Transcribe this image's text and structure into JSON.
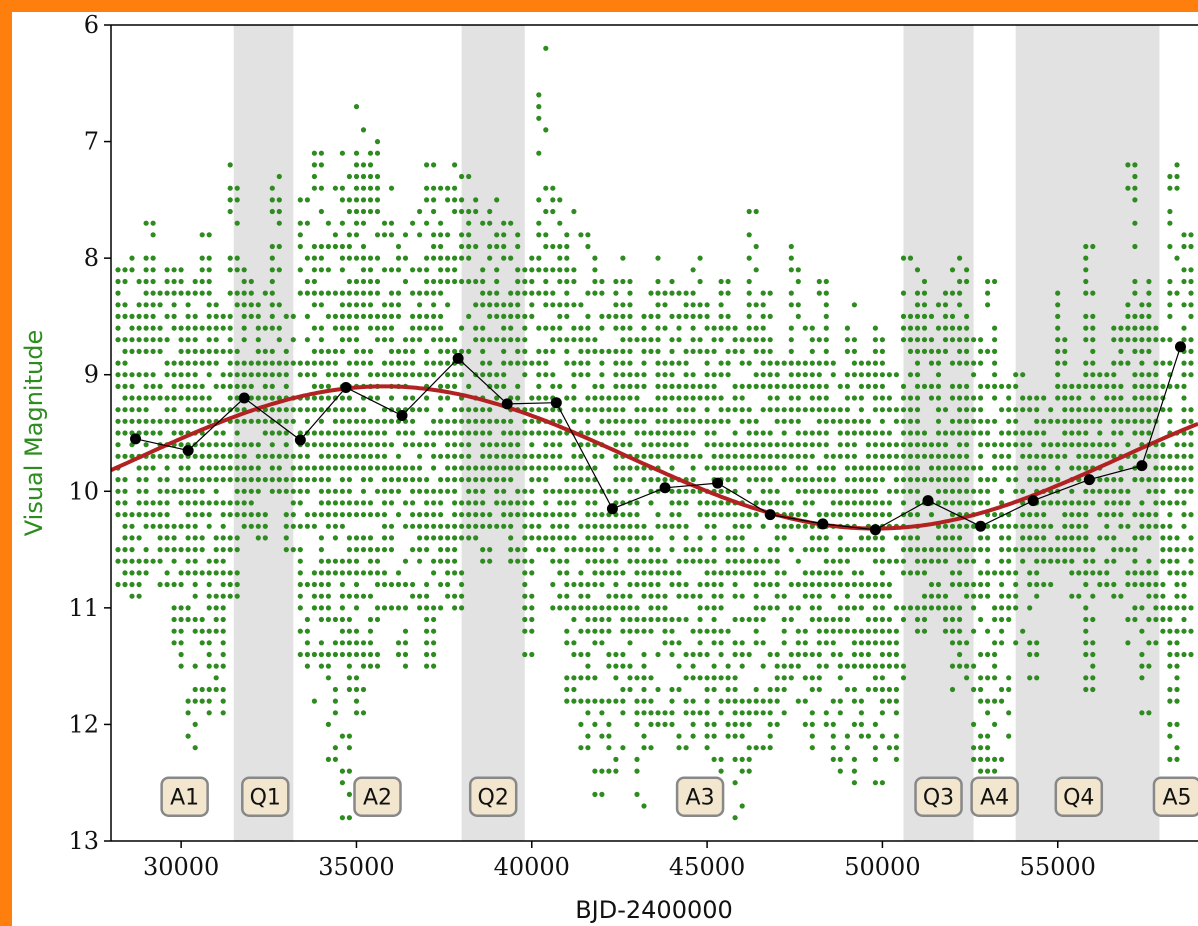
{
  "colors": {
    "border": "#ff7f0e",
    "scatter": "#2e8b1f",
    "fit": "#b22222",
    "means": "#000000",
    "shade": "#e2e2e2",
    "label_fill": "#f2e6cf",
    "label_stroke": "#888888",
    "ylabel": "#2e8b1f"
  },
  "chart_data": {
    "type": "scatter",
    "xlabel": "BJD-2400000",
    "ylabel": "Visual Magnitude",
    "xlim": [
      28000,
      59000
    ],
    "ylim": [
      13,
      6
    ],
    "y_inverted": true,
    "xticks": [
      30000,
      35000,
      40000,
      45000,
      50000,
      55000
    ],
    "yticks": [
      6,
      7,
      8,
      9,
      10,
      11,
      12,
      13
    ],
    "grid": false,
    "shaded_regions": [
      {
        "name": "Q1",
        "x0": 31500,
        "x1": 33200
      },
      {
        "name": "Q2",
        "x0": 38000,
        "x1": 39800
      },
      {
        "name": "Q3",
        "x0": 50600,
        "x1": 52600
      },
      {
        "name": "Q4",
        "x0": 53800,
        "x1": 57900
      }
    ],
    "region_labels": [
      {
        "text": "A1",
        "x": 30100
      },
      {
        "text": "Q1",
        "x": 32400
      },
      {
        "text": "A2",
        "x": 35600
      },
      {
        "text": "Q2",
        "x": 38900
      },
      {
        "text": "A3",
        "x": 44800
      },
      {
        "text": "Q3",
        "x": 51600
      },
      {
        "text": "A4",
        "x": 53200
      },
      {
        "text": "Q4",
        "x": 55600
      },
      {
        "text": "A5",
        "x": 58400
      }
    ],
    "region_label_y": 12.62,
    "series": [
      {
        "role": "mean magnitudes",
        "x": [
          28700,
          30200,
          31800,
          33400,
          34700,
          36300,
          37900,
          39300,
          40700,
          42300,
          43800,
          45300,
          46800,
          48300,
          49800,
          51300,
          52800,
          54300,
          55900,
          57400,
          58500
        ],
        "y": [
          9.55,
          9.65,
          9.2,
          9.56,
          9.11,
          9.35,
          8.86,
          9.25,
          9.24,
          10.15,
          9.97,
          9.93,
          10.2,
          10.28,
          10.33,
          10.08,
          10.3,
          10.08,
          9.9,
          9.78,
          8.76
        ]
      },
      {
        "role": "sinusoidal fit",
        "mean": 9.71,
        "amplitude": 0.61,
        "period": 28000,
        "phase_x": 35800
      },
      {
        "role": "visual estimates",
        "bins": [
          {
            "x": 28300,
            "lo": 8.1,
            "hi": 10.8
          },
          {
            "x": 28700,
            "lo": 8.0,
            "hi": 10.9
          },
          {
            "x": 29100,
            "lo": 7.7,
            "hi": 10.7
          },
          {
            "x": 29500,
            "lo": 8.1,
            "hi": 10.8
          },
          {
            "x": 29900,
            "lo": 8.0,
            "hi": 11.6
          },
          {
            "x": 30300,
            "lo": 8.2,
            "hi": 12.2
          },
          {
            "x": 30700,
            "lo": 7.8,
            "hi": 11.9
          },
          {
            "x": 31100,
            "lo": 8.4,
            "hi": 11.9
          },
          {
            "x": 31500,
            "lo": 7.2,
            "hi": 10.9
          },
          {
            "x": 31900,
            "lo": 8.1,
            "hi": 10.3
          },
          {
            "x": 32300,
            "lo": 8.3,
            "hi": 10.4
          },
          {
            "x": 32700,
            "lo": 7.3,
            "hi": 10.0
          },
          {
            "x": 33100,
            "lo": 8.5,
            "hi": 10.5
          },
          {
            "x": 33500,
            "lo": 7.5,
            "hi": 11.5
          },
          {
            "x": 33900,
            "lo": 6.9,
            "hi": 11.8
          },
          {
            "x": 34300,
            "lo": 7.4,
            "hi": 12.4
          },
          {
            "x": 34700,
            "lo": 7.1,
            "hi": 12.8
          },
          {
            "x": 35100,
            "lo": 6.6,
            "hi": 11.9
          },
          {
            "x": 35500,
            "lo": 7.0,
            "hi": 11.6
          },
          {
            "x": 35900,
            "lo": 7.4,
            "hi": 11.0
          },
          {
            "x": 36300,
            "lo": 7.8,
            "hi": 11.5
          },
          {
            "x": 36700,
            "lo": 7.6,
            "hi": 11.0
          },
          {
            "x": 37100,
            "lo": 7.2,
            "hi": 11.5
          },
          {
            "x": 37500,
            "lo": 7.4,
            "hi": 11.0
          },
          {
            "x": 37900,
            "lo": 7.1,
            "hi": 11.0
          },
          {
            "x": 38300,
            "lo": 7.3,
            "hi": 10.4
          },
          {
            "x": 38700,
            "lo": 7.6,
            "hi": 10.6
          },
          {
            "x": 39100,
            "lo": 7.5,
            "hi": 10.3
          },
          {
            "x": 39500,
            "lo": 7.7,
            "hi": 10.6
          },
          {
            "x": 39900,
            "lo": 8.0,
            "hi": 11.4
          },
          {
            "x": 40300,
            "lo": 6.1,
            "hi": 10.5
          },
          {
            "x": 40700,
            "lo": 7.4,
            "hi": 11.0
          },
          {
            "x": 41100,
            "lo": 7.6,
            "hi": 11.8
          },
          {
            "x": 41500,
            "lo": 7.8,
            "hi": 12.2
          },
          {
            "x": 41900,
            "lo": 8.0,
            "hi": 12.6
          },
          {
            "x": 42300,
            "lo": 8.2,
            "hi": 12.4
          },
          {
            "x": 42700,
            "lo": 8.0,
            "hi": 12.2
          },
          {
            "x": 43100,
            "lo": 8.5,
            "hi": 12.7
          },
          {
            "x": 43500,
            "lo": 8.0,
            "hi": 12.3
          },
          {
            "x": 43900,
            "lo": 8.2,
            "hi": 12.0
          },
          {
            "x": 44300,
            "lo": 8.3,
            "hi": 12.3
          },
          {
            "x": 44700,
            "lo": 8.0,
            "hi": 12.1
          },
          {
            "x": 45100,
            "lo": 8.4,
            "hi": 12.5
          },
          {
            "x": 45500,
            "lo": 8.2,
            "hi": 12.8
          },
          {
            "x": 45900,
            "lo": 8.6,
            "hi": 12.9
          },
          {
            "x": 46300,
            "lo": 7.6,
            "hi": 12.4
          },
          {
            "x": 46700,
            "lo": 8.3,
            "hi": 12.2
          },
          {
            "x": 47100,
            "lo": 8.8,
            "hi": 12.0
          },
          {
            "x": 47500,
            "lo": 7.9,
            "hi": 11.8
          },
          {
            "x": 47900,
            "lo": 8.5,
            "hi": 12.3
          },
          {
            "x": 48300,
            "lo": 8.2,
            "hi": 12.0
          },
          {
            "x": 48700,
            "lo": 8.8,
            "hi": 12.4
          },
          {
            "x": 49100,
            "lo": 8.4,
            "hi": 12.8
          },
          {
            "x": 49500,
            "lo": 8.9,
            "hi": 12.1
          },
          {
            "x": 49900,
            "lo": 8.6,
            "hi": 12.6
          },
          {
            "x": 50300,
            "lo": 9.0,
            "hi": 12.3
          },
          {
            "x": 50700,
            "lo": 8.0,
            "hi": 11.6
          },
          {
            "x": 51100,
            "lo": 8.1,
            "hi": 11.2
          },
          {
            "x": 51500,
            "lo": 8.4,
            "hi": 11.0
          },
          {
            "x": 51900,
            "lo": 8.1,
            "hi": 11.7
          },
          {
            "x": 52300,
            "lo": 8.0,
            "hi": 11.6
          },
          {
            "x": 52700,
            "lo": 8.6,
            "hi": 12.5
          },
          {
            "x": 53100,
            "lo": 8.2,
            "hi": 12.7
          },
          {
            "x": 53500,
            "lo": 9.1,
            "hi": 12.3
          },
          {
            "x": 53900,
            "lo": 9.0,
            "hi": 11.3
          },
          {
            "x": 54300,
            "lo": 9.2,
            "hi": 11.6
          },
          {
            "x": 54700,
            "lo": 9.2,
            "hi": 10.8
          },
          {
            "x": 55100,
            "lo": 8.3,
            "hi": 10.6
          },
          {
            "x": 55500,
            "lo": 9.1,
            "hi": 10.9
          },
          {
            "x": 55900,
            "lo": 7.9,
            "hi": 11.7
          },
          {
            "x": 56300,
            "lo": 9.0,
            "hi": 10.8
          },
          {
            "x": 56700,
            "lo": 8.6,
            "hi": 10.9
          },
          {
            "x": 57100,
            "lo": 7.2,
            "hi": 11.4
          },
          {
            "x": 57500,
            "lo": 8.2,
            "hi": 11.9
          },
          {
            "x": 57900,
            "lo": 8.6,
            "hi": 11.4
          },
          {
            "x": 58300,
            "lo": 7.2,
            "hi": 12.3
          },
          {
            "x": 58700,
            "lo": 7.8,
            "hi": 11.4
          }
        ]
      }
    ]
  }
}
